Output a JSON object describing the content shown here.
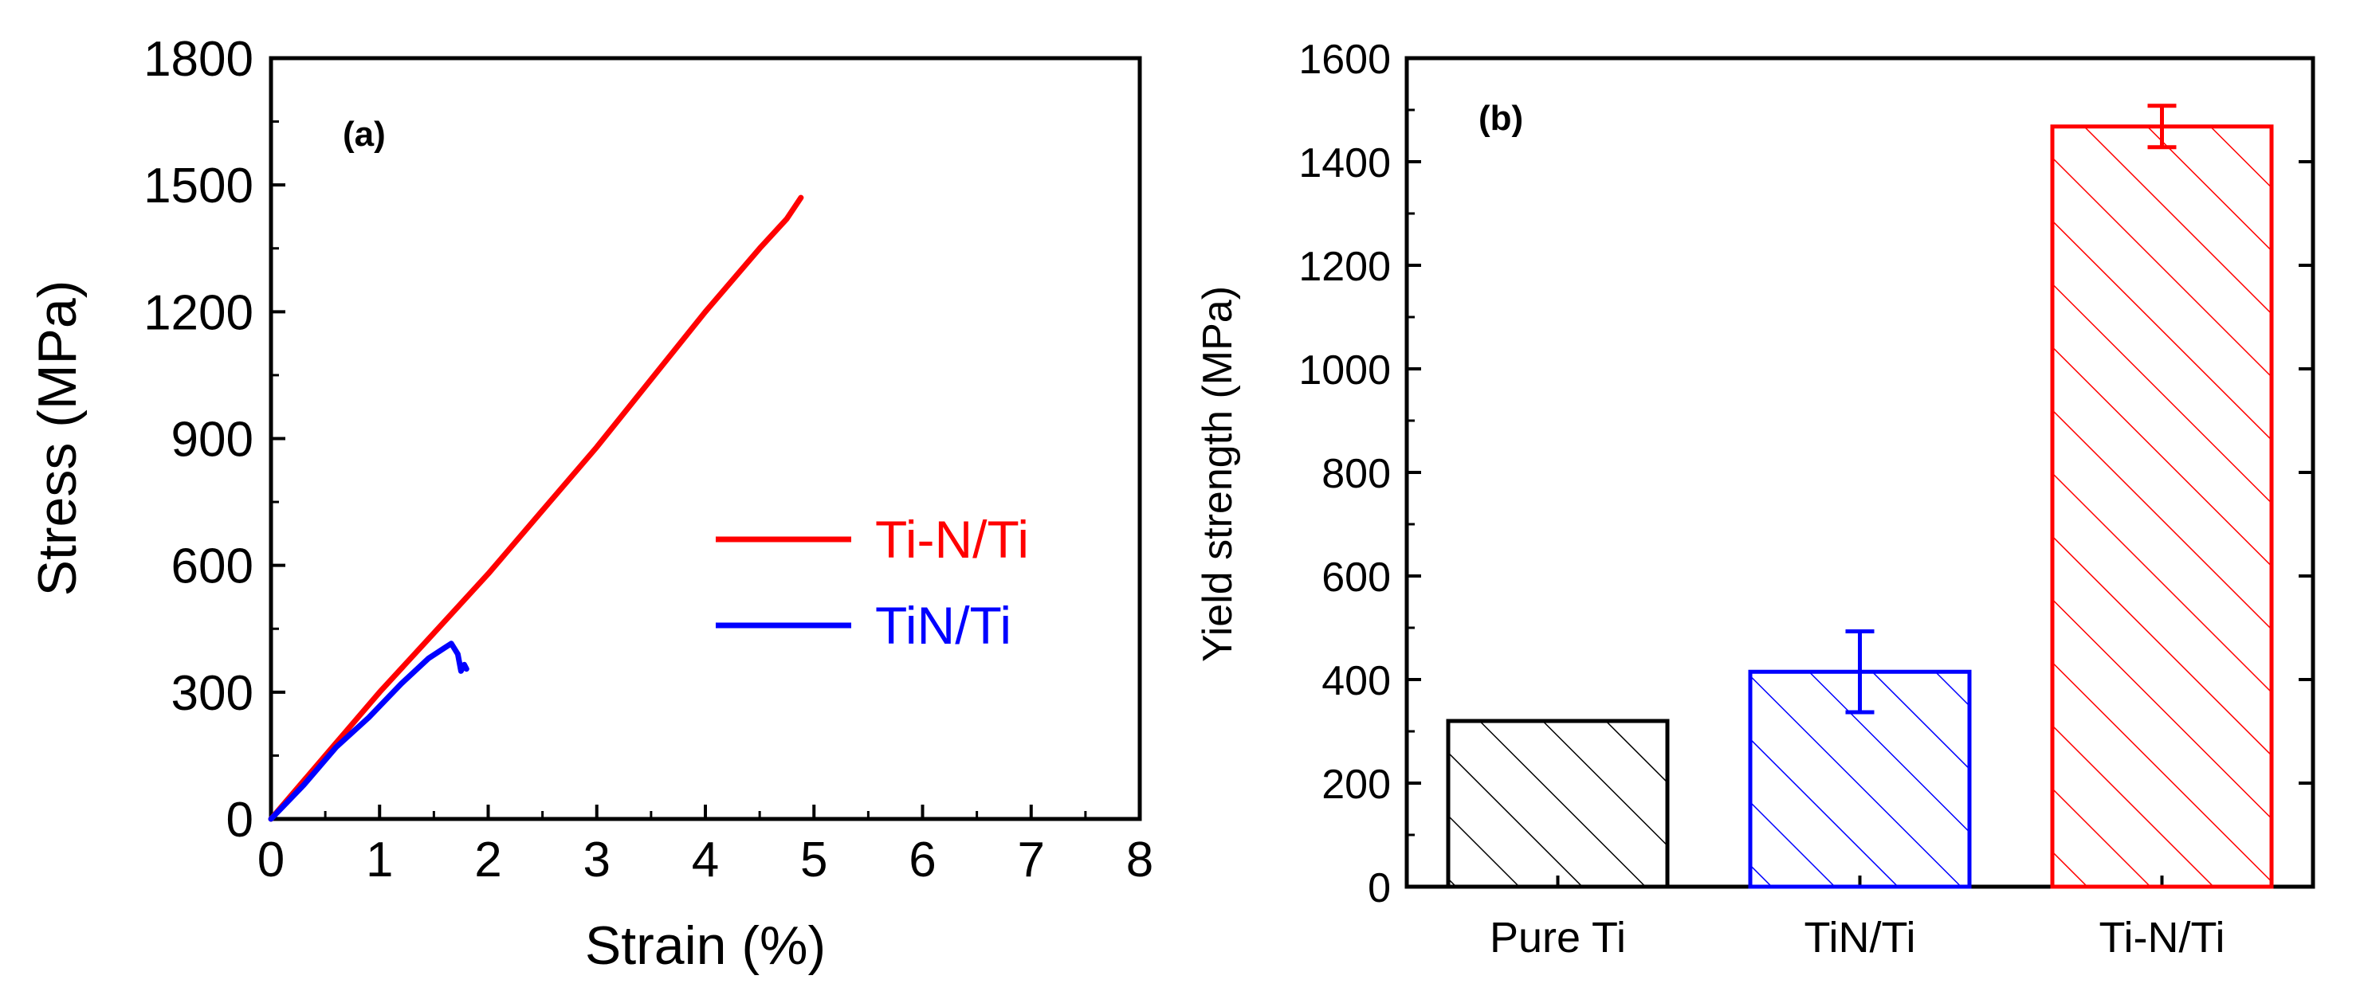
{
  "colors": {
    "black": "#000000",
    "red": "#ff0000",
    "blue": "#0000ff",
    "background": "#ffffff"
  },
  "chart_data": [
    {
      "panel_label": "(a)",
      "type": "line",
      "xlabel": "Strain (%)",
      "ylabel": "Stress (MPa)",
      "xlim": [
        0,
        8
      ],
      "ylim": [
        0,
        1800
      ],
      "xticks": [
        0,
        1,
        2,
        3,
        4,
        5,
        6,
        7,
        8
      ],
      "yticks": [
        0,
        300,
        600,
        900,
        1200,
        1500,
        1800
      ],
      "xtick_labels": [
        "0",
        "1",
        "2",
        "3",
        "4",
        "5",
        "6",
        "7",
        "8"
      ],
      "ytick_labels": [
        "0",
        "300",
        "600",
        "900",
        "1200",
        "1500",
        "1800"
      ],
      "legend_position": "center-right",
      "series": [
        {
          "name": "Ti-N/Ti",
          "color": "#ff0000",
          "x": [
            0,
            0.5,
            1.0,
            1.5,
            2.0,
            2.5,
            3.0,
            3.5,
            4.0,
            4.5,
            4.75,
            4.88
          ],
          "y": [
            0,
            150,
            300,
            440,
            580,
            730,
            880,
            1040,
            1200,
            1350,
            1420,
            1470
          ]
        },
        {
          "name": "TiN/Ti",
          "color": "#0000ff",
          "x": [
            0,
            0.3,
            0.6,
            0.9,
            1.2,
            1.45,
            1.6,
            1.66,
            1.72,
            1.75,
            1.78,
            1.8
          ],
          "y": [
            0,
            80,
            170,
            240,
            320,
            380,
            405,
            415,
            390,
            350,
            365,
            355
          ]
        }
      ]
    },
    {
      "panel_label": "(b)",
      "type": "bar",
      "ylabel": "Yield strength (MPa)",
      "ylim": [
        0,
        1600
      ],
      "yticks": [
        0,
        200,
        400,
        600,
        800,
        1000,
        1200,
        1400,
        1600
      ],
      "ytick_labels": [
        "0",
        "200",
        "400",
        "600",
        "800",
        "1000",
        "1200",
        "1400",
        "1600"
      ],
      "categories": [
        "Pure Ti",
        "TiN/Ti",
        "Ti-N/Ti"
      ],
      "values": [
        320,
        415,
        1468
      ],
      "errors": [
        0,
        78,
        40
      ],
      "bar_colors": [
        "#000000",
        "#0000ff",
        "#ff0000"
      ],
      "fill": "hatched"
    }
  ]
}
